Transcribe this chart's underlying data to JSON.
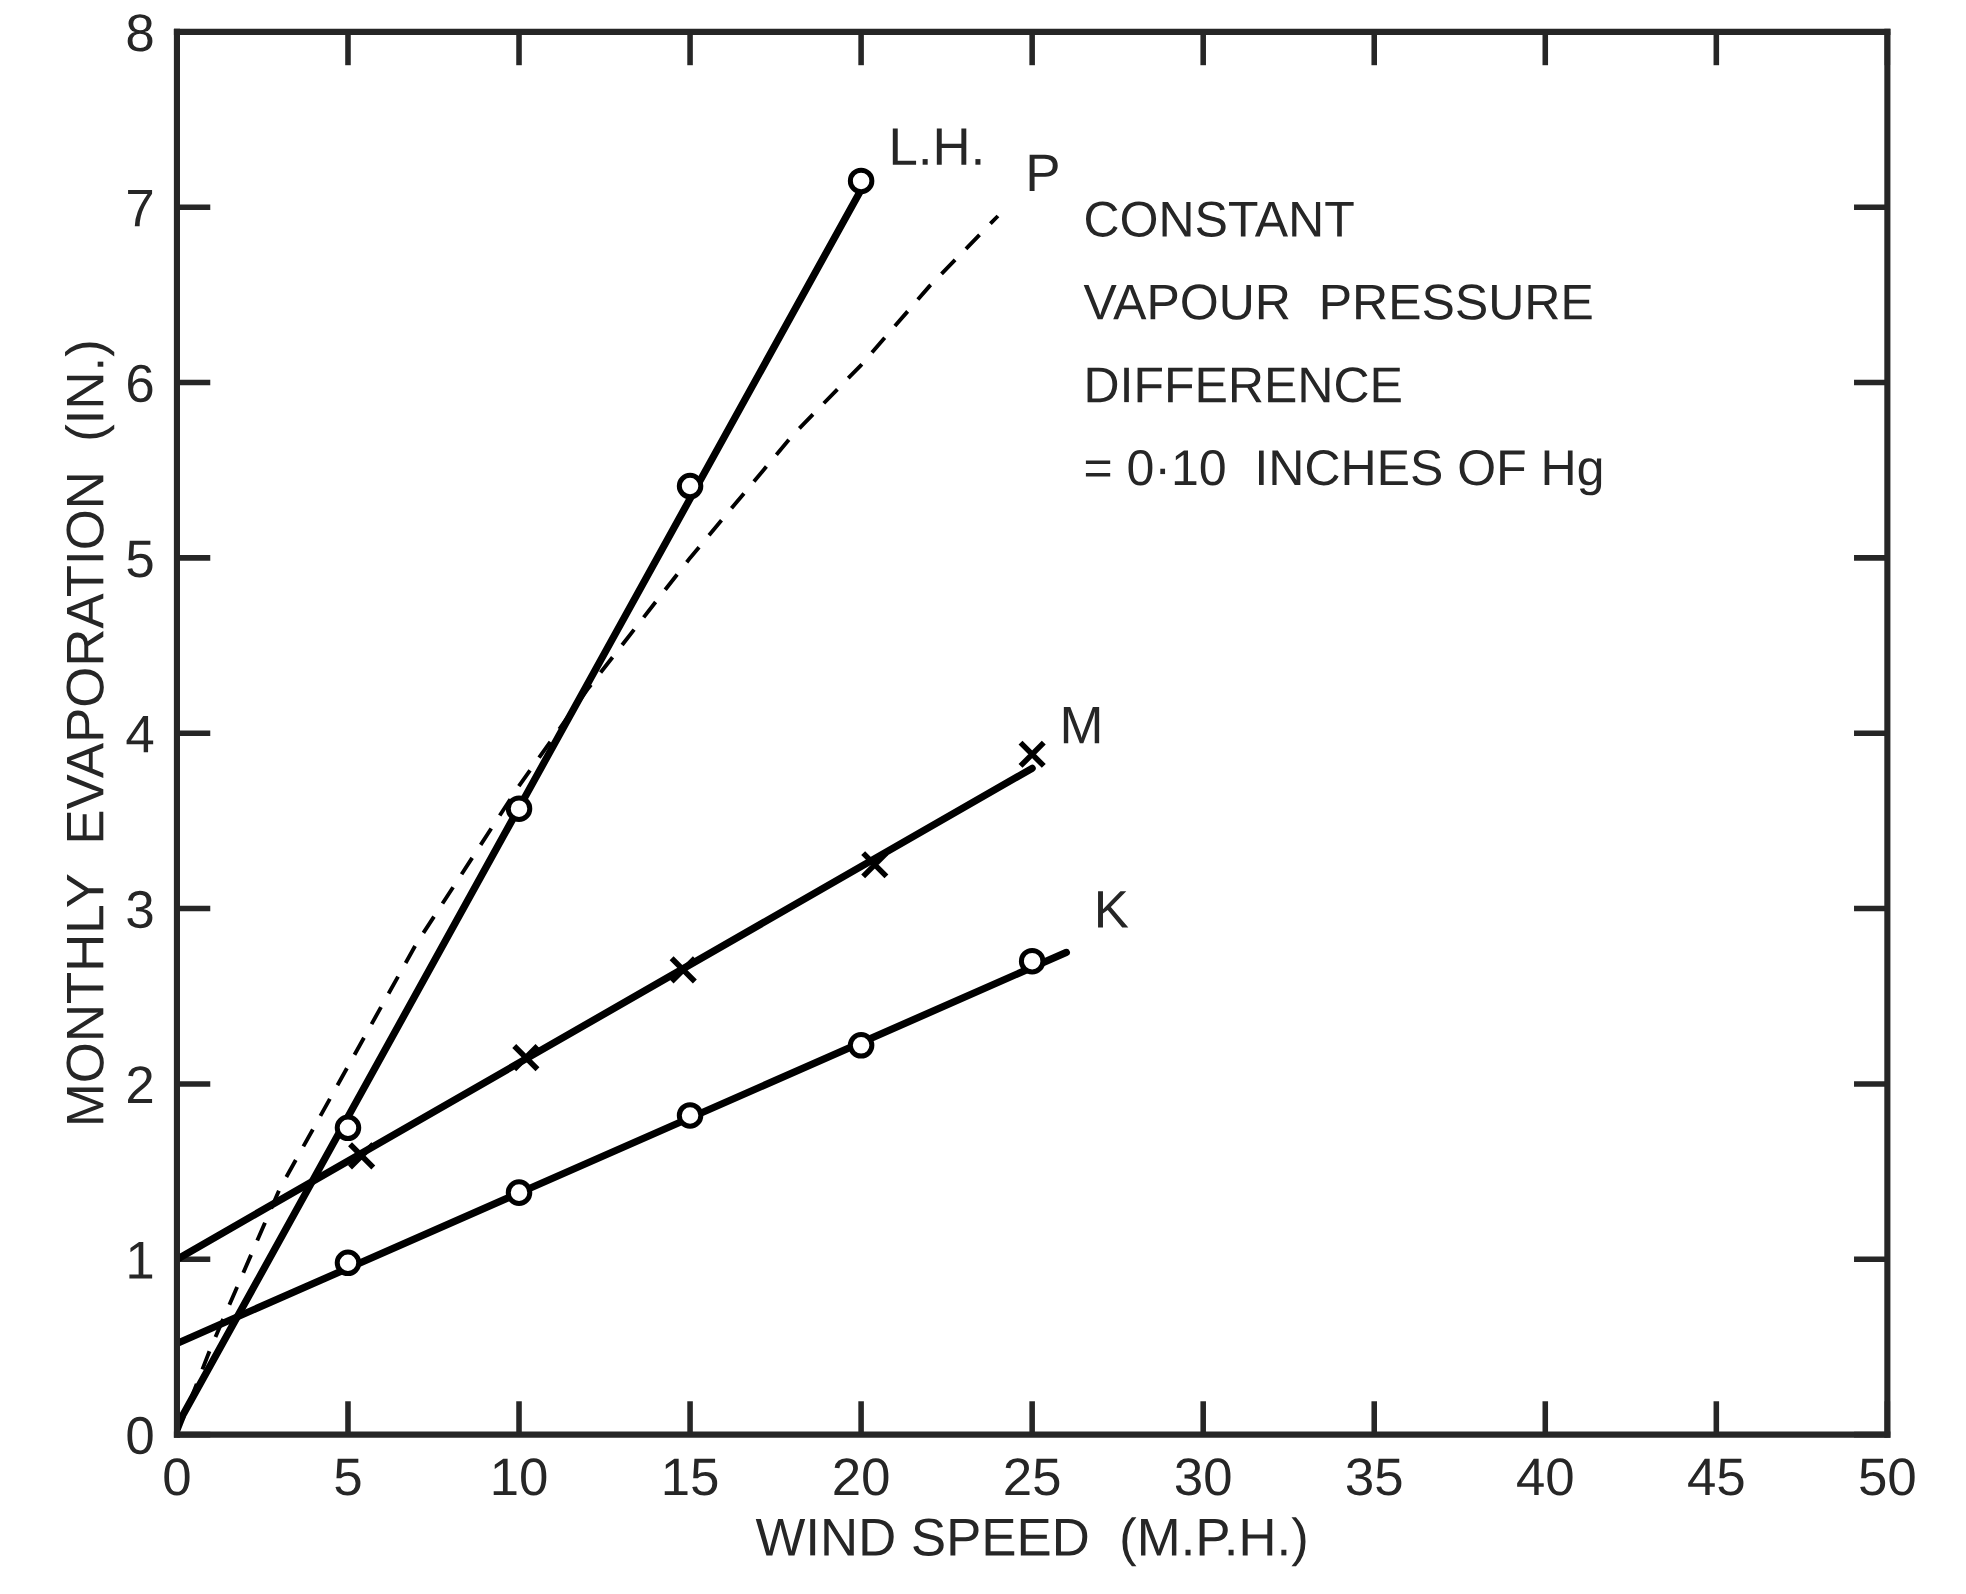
{
  "chart_data": {
    "type": "line",
    "xlabel": "WIND SPEED  (M.P.H.)",
    "ylabel": "MONTHLY  EVAPORATION  (IN.)",
    "xlim": [
      0,
      50
    ],
    "ylim": [
      0,
      8
    ],
    "xticks": [
      0,
      5,
      10,
      15,
      20,
      25,
      30,
      35,
      40,
      45,
      50
    ],
    "yticks": [
      0,
      1,
      2,
      3,
      4,
      5,
      6,
      7,
      8
    ],
    "grid": false,
    "legend": false,
    "series": [
      {
        "type": "scatter",
        "marker": "circle",
        "color": "#000000",
        "x": [
          5,
          10,
          15,
          20
        ],
        "values": [
          1.75,
          3.57,
          5.41,
          7.15
        ]
      },
      {
        "name": "L.H.",
        "line_style": "solid",
        "color": "#000000",
        "x": [
          0,
          20
        ],
        "values": [
          0.05,
          7.1
        ]
      },
      {
        "name": "P",
        "line_style": "dashed",
        "color": "#000000",
        "x": [
          0,
          1,
          2,
          3,
          4,
          5,
          7,
          10,
          12,
          15,
          18,
          20,
          22,
          24
        ],
        "values": [
          0,
          0.5,
          0.95,
          1.4,
          1.75,
          2.1,
          2.8,
          3.7,
          4.25,
          5.0,
          5.7,
          6.1,
          6.55,
          6.95
        ]
      },
      {
        "type": "scatter",
        "marker": "cross",
        "color": "#000000",
        "x": [
          5.4,
          10.2,
          14.8,
          20.4,
          25
        ],
        "values": [
          1.59,
          2.15,
          2.65,
          3.25,
          3.88
        ]
      },
      {
        "name": "M",
        "line_style": "solid",
        "color": "#000000",
        "x": [
          0,
          25
        ],
        "values": [
          1.0,
          3.8
        ]
      },
      {
        "type": "scatter",
        "marker": "circle",
        "color": "#000000",
        "x": [
          5,
          10,
          15,
          20,
          25
        ],
        "values": [
          0.98,
          1.38,
          1.82,
          2.22,
          2.7
        ]
      },
      {
        "name": "K",
        "line_style": "solid",
        "color": "#000000",
        "x": [
          0,
          26
        ],
        "values": [
          0.52,
          2.75
        ]
      }
    ],
    "annotations": [
      "CONSTANT\nVAPOUR  PRESSURE\nDIFFERENCE\n= 0·10  INCHES OF Hg"
    ]
  }
}
